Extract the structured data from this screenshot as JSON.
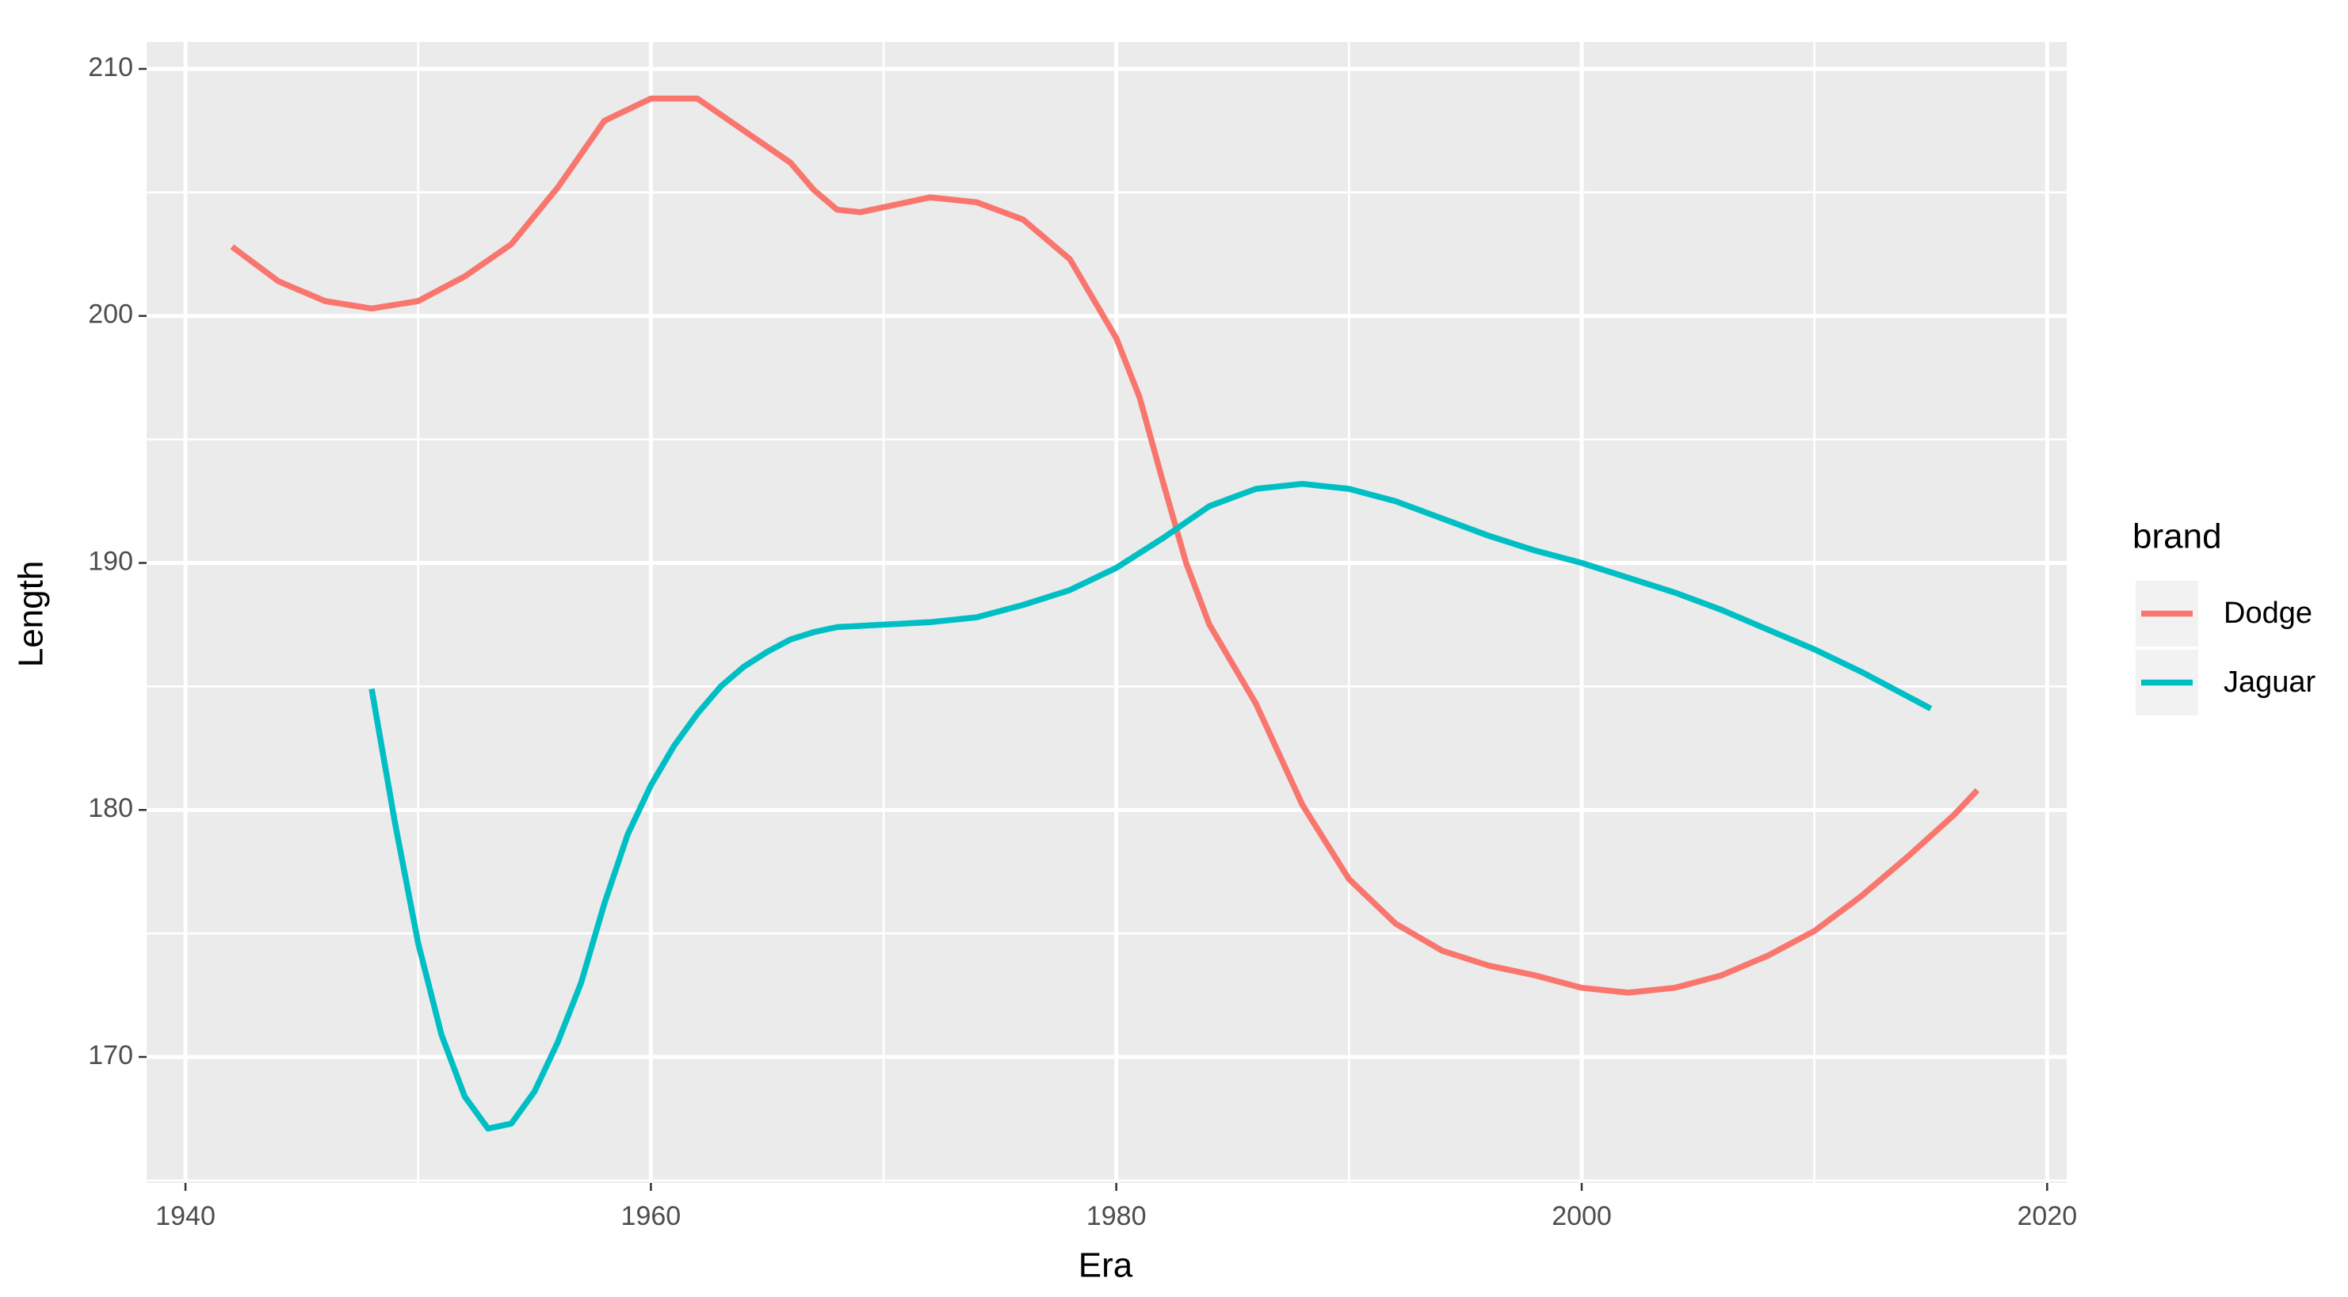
{
  "chart_data": {
    "type": "line",
    "x_label": "Era",
    "y_label": "Length",
    "legend_title": "brand",
    "legend_position": "right",
    "xlim": [
      1938.33,
      2020.84
    ],
    "ylim": [
      164.9,
      211.09
    ],
    "xticks": [
      1940,
      1960,
      1980,
      2000,
      2020
    ],
    "yticks": [
      170,
      180,
      190,
      200,
      210
    ],
    "x_minor_grid": [
      1950,
      1970,
      1990,
      2010
    ],
    "y_minor_grid": [
      165,
      175,
      185,
      195,
      205
    ],
    "grid": true,
    "background": "#ebebeb",
    "series": [
      {
        "name": "Dodge",
        "color": "#f8766d",
        "x": [
          1942,
          1944,
          1946,
          1948,
          1950,
          1952,
          1954,
          1956,
          1958,
          1960,
          1962,
          1964,
          1966,
          1967,
          1968,
          1969,
          1970,
          1972,
          1974,
          1976,
          1978,
          1980,
          1981,
          1982,
          1983,
          1984,
          1986,
          1988,
          1990,
          1992,
          1994,
          1996,
          1998,
          2000,
          2002,
          2004,
          2006,
          2008,
          2010,
          2012,
          2014,
          2016,
          2017
        ],
        "values": [
          202.8,
          201.4,
          200.6,
          200.3,
          200.6,
          201.6,
          202.9,
          205.2,
          207.9,
          208.8,
          208.8,
          207.5,
          206.2,
          205.1,
          204.3,
          204.2,
          204.4,
          204.8,
          204.6,
          203.9,
          202.3,
          199.1,
          196.7,
          193.3,
          190.0,
          187.5,
          184.3,
          180.2,
          177.2,
          175.4,
          174.3,
          173.7,
          173.3,
          172.8,
          172.6,
          172.8,
          173.3,
          174.1,
          175.1,
          176.5,
          178.1,
          179.8,
          180.8
        ]
      },
      {
        "name": "Jaguar",
        "color": "#00bfc4",
        "x": [
          1948,
          1949,
          1950,
          1951,
          1952,
          1953,
          1954,
          1955,
          1956,
          1957,
          1958,
          1959,
          1960,
          1961,
          1962,
          1963,
          1964,
          1965,
          1966,
          1967,
          1968,
          1970,
          1972,
          1974,
          1976,
          1978,
          1980,
          1982,
          1984,
          1986,
          1988,
          1990,
          1992,
          1994,
          1996,
          1998,
          2000,
          2002,
          2004,
          2006,
          2008,
          2010,
          2012,
          2014,
          2015
        ],
        "values": [
          184.9,
          179.5,
          174.6,
          170.9,
          168.4,
          167.1,
          167.3,
          168.6,
          170.6,
          173.0,
          176.2,
          179.0,
          181.0,
          182.6,
          183.9,
          185.0,
          185.8,
          186.4,
          186.9,
          187.2,
          187.4,
          187.5,
          187.6,
          187.8,
          188.3,
          188.9,
          189.8,
          191.0,
          192.3,
          193.0,
          193.2,
          193.0,
          192.5,
          191.8,
          191.1,
          190.5,
          190.0,
          189.4,
          188.8,
          188.1,
          187.3,
          186.5,
          185.6,
          184.6,
          184.1
        ]
      }
    ]
  }
}
